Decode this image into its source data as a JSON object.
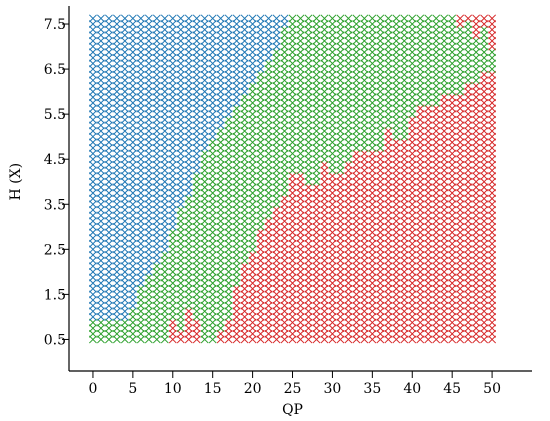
{
  "chart_data": {
    "type": "scatter",
    "title": "",
    "xlabel": "QP",
    "ylabel": "H (X)",
    "xlim": [
      -3,
      55
    ],
    "ylim": [
      -0.2,
      7.9
    ],
    "x_ticks": [
      0,
      5,
      10,
      15,
      20,
      25,
      30,
      35,
      40,
      45,
      50
    ],
    "y_ticks": [
      0.5,
      1.5,
      2.5,
      3.5,
      4.5,
      5.5,
      6.5,
      7.5
    ],
    "y_tick_labels": [
      "0.5",
      "1.5",
      "2.5",
      "3.5",
      "4.5",
      "5.5",
      "6.5",
      "7.5"
    ],
    "marker": "x",
    "grid": false,
    "legend": "none",
    "x_range": [
      0,
      50
    ],
    "y_range": [
      0.5,
      7.625
    ],
    "y_step": 0.125,
    "colors": {
      "blue": "#1f77b4",
      "green": "#2ca02c",
      "red": "#d62728"
    },
    "classes": [
      {
        "color": "blue"
      },
      {
        "color": "green"
      },
      {
        "color": "red"
      }
    ],
    "class_boundaries": {
      "blue_green_upper_y": [
        [
          0,
          0.875
        ],
        [
          1,
          0.875
        ],
        [
          2,
          0.875
        ],
        [
          3,
          0.875
        ],
        [
          4,
          0.875
        ],
        [
          5,
          1.125
        ],
        [
          6,
          1.625
        ],
        [
          7,
          1.875
        ],
        [
          8,
          2.125
        ],
        [
          9,
          2.375
        ],
        [
          10,
          2.875
        ],
        [
          11,
          3.375
        ],
        [
          12,
          3.625
        ],
        [
          13,
          4.125
        ],
        [
          14,
          4.625
        ],
        [
          15,
          4.875
        ],
        [
          16,
          5.125
        ],
        [
          17,
          5.375
        ],
        [
          18,
          5.625
        ],
        [
          19,
          5.875
        ],
        [
          20,
          6.125
        ],
        [
          21,
          6.375
        ],
        [
          22,
          6.625
        ],
        [
          23,
          6.875
        ],
        [
          24,
          7.375
        ],
        [
          25,
          7.625
        ],
        [
          26,
          7.625
        ],
        [
          27,
          7.625
        ],
        [
          28,
          7.625
        ],
        [
          29,
          7.625
        ],
        [
          30,
          7.625
        ],
        [
          31,
          7.625
        ],
        [
          32,
          7.625
        ],
        [
          33,
          7.625
        ],
        [
          34,
          7.625
        ],
        [
          35,
          7.625
        ],
        [
          36,
          7.625
        ],
        [
          37,
          7.625
        ],
        [
          38,
          7.625
        ],
        [
          39,
          7.625
        ],
        [
          40,
          7.625
        ],
        [
          41,
          7.625
        ],
        [
          42,
          7.625
        ],
        [
          43,
          7.625
        ],
        [
          44,
          7.625
        ],
        [
          45,
          7.625
        ],
        [
          46,
          7.625
        ],
        [
          47,
          7.625
        ],
        [
          48,
          7.625
        ],
        [
          49,
          7.625
        ],
        [
          50,
          7.625
        ]
      ],
      "green_red_upper_y": [
        [
          0,
          0.375
        ],
        [
          1,
          0.375
        ],
        [
          2,
          0.375
        ],
        [
          3,
          0.375
        ],
        [
          4,
          0.375
        ],
        [
          5,
          0.375
        ],
        [
          6,
          0.375
        ],
        [
          7,
          0.375
        ],
        [
          8,
          0.375
        ],
        [
          9,
          0.375
        ],
        [
          10,
          0.875
        ],
        [
          11,
          0.625
        ],
        [
          12,
          1.125
        ],
        [
          13,
          0.875
        ],
        [
          14,
          0.375
        ],
        [
          15,
          0.375
        ],
        [
          16,
          0.625
        ],
        [
          17,
          0.875
        ],
        [
          18,
          1.625
        ],
        [
          19,
          2.125
        ],
        [
          20,
          2.375
        ],
        [
          21,
          2.875
        ],
        [
          22,
          3.125
        ],
        [
          23,
          3.375
        ],
        [
          24,
          3.625
        ],
        [
          25,
          4.125
        ],
        [
          26,
          4.125
        ],
        [
          27,
          3.875
        ],
        [
          28,
          3.875
        ],
        [
          29,
          4.375
        ],
        [
          30,
          4.125
        ],
        [
          31,
          4.125
        ],
        [
          32,
          4.375
        ],
        [
          33,
          4.625
        ],
        [
          34,
          4.625
        ],
        [
          35,
          4.625
        ],
        [
          36,
          4.625
        ],
        [
          37,
          5.125
        ],
        [
          38,
          4.875
        ],
        [
          39,
          4.875
        ],
        [
          40,
          5.375
        ],
        [
          41,
          5.625
        ],
        [
          42,
          5.625
        ],
        [
          43,
          5.625
        ],
        [
          44,
          5.875
        ],
        [
          45,
          5.875
        ],
        [
          46,
          5.875
        ],
        [
          47,
          6.125
        ],
        [
          48,
          6.125
        ],
        [
          49,
          6.375
        ],
        [
          50,
          6.375
        ]
      ],
      "red_top_right": [
        [
          46,
          7.5,
          7.625
        ],
        [
          47,
          7.625,
          7.625
        ],
        [
          48,
          7.25,
          7.625
        ],
        [
          49,
          7.5,
          7.625
        ],
        [
          50,
          7.0,
          7.625
        ]
      ]
    }
  }
}
